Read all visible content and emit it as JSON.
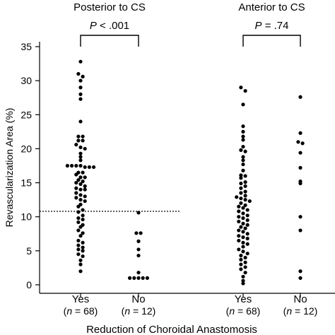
{
  "chart_data": {
    "type": "scatter",
    "subtype": "dot-plot",
    "xlabel": "Reduction of Choroidal Anastomosis",
    "ylabel": "Revascularization Area (%)",
    "ylim": [
      0,
      35
    ],
    "yticks": [
      0,
      5,
      10,
      15,
      20,
      25,
      30,
      35
    ],
    "reference_line": {
      "y": 10.8,
      "style": "dotted",
      "scope": "Posterior to CS"
    },
    "panels": [
      {
        "title": "Posterior to CS",
        "p_value": "P < .001",
        "groups": [
          {
            "label": "Yes",
            "n_label": "(n = 68)",
            "values": [
              32.8,
              31.0,
              30.6,
              30.0,
              29.0,
              28.0,
              27.3,
              24.0,
              21.8,
              21.8,
              21.2,
              21.2,
              20.6,
              20.2,
              20.0,
              19.3,
              18.8,
              18.3,
              17.5,
              17.5,
              17.5,
              17.5,
              17.3,
              17.3,
              17.3,
              16.5,
              16.5,
              16.2,
              15.8,
              15.8,
              15.4,
              15.2,
              15.0,
              14.8,
              14.5,
              14.2,
              14.0,
              14.0,
              13.5,
              13.2,
              13.0,
              12.8,
              12.5,
              12.3,
              11.8,
              11.5,
              11.0,
              10.7,
              10.2,
              9.8,
              9.6,
              9.2,
              8.8,
              8.5,
              8.0,
              7.6,
              7.2,
              6.5,
              6.2,
              5.8,
              5.5,
              5.2,
              5.0,
              4.5,
              4.2,
              3.6,
              3.0,
              2.0
            ]
          },
          {
            "label": "No",
            "n_label": "(n = 12)",
            "values": [
              10.6,
              7.6,
              7.6,
              6.4,
              5.2,
              4.3,
              1.8,
              1.0,
              1.0,
              1.0,
              1.0,
              1.0
            ]
          }
        ]
      },
      {
        "title": "Anterior to CS",
        "p_value": "P = .74",
        "groups": [
          {
            "label": "Yes",
            "n_label": "(n = 68)",
            "values": [
              29.0,
              28.5,
              26.5,
              23.3,
              22.5,
              21.8,
              21.3,
              20.3,
              19.8,
              19.6,
              18.8,
              18.3,
              17.7,
              16.8,
              16.1,
              16.0,
              15.7,
              15.1,
              14.9,
              14.5,
              14.2,
              13.7,
              13.5,
              13.1,
              12.9,
              12.7,
              12.5,
              12.3,
              12.0,
              11.7,
              11.5,
              11.3,
              11.0,
              10.8,
              10.5,
              10.2,
              10.0,
              9.8,
              9.5,
              9.3,
              9.0,
              8.8,
              8.5,
              8.3,
              8.0,
              7.8,
              7.5,
              7.2,
              7.0,
              6.8,
              6.5,
              6.2,
              6.0,
              5.6,
              5.2,
              4.9,
              4.6,
              4.3,
              4.0,
              3.7,
              3.3,
              3.0,
              2.6,
              2.3,
              1.8,
              1.2,
              0.6,
              0.2
            ]
          },
          {
            "label": "No",
            "n_label": "(n = 12)",
            "values": [
              27.6,
              22.3,
              21.0,
              20.8,
              19.4,
              17.2,
              15.2,
              14.9,
              10.0,
              8.0,
              2.0,
              1.0
            ]
          }
        ]
      }
    ]
  }
}
